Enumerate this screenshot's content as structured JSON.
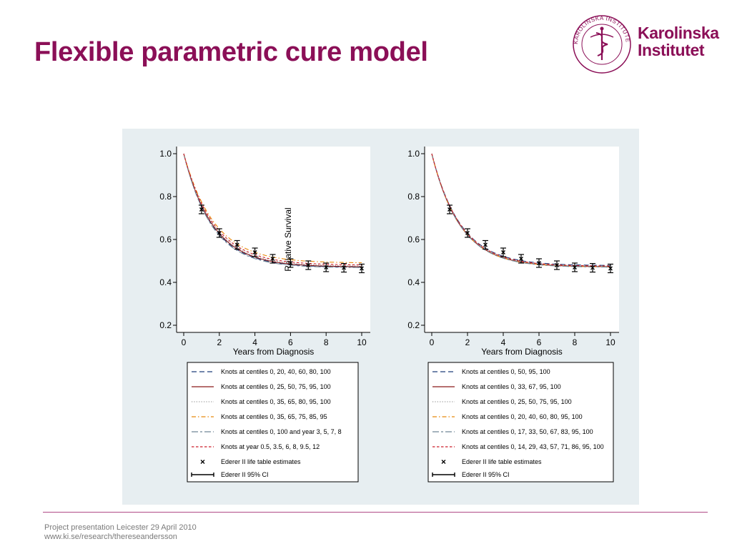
{
  "slide": {
    "title": "Flexible parametric cure model",
    "logo_line1": "Karolinska",
    "logo_line2": "Institutet",
    "seal_text": "KAROLINSKA INSTITUTET · ANNO 1810",
    "footer_line1": "Project presentation Leicester 29 April 2010",
    "footer_line2": "www.ki.se/research/thereseandersson"
  },
  "colors": {
    "brand": "#8b0f57",
    "panel_bg": "#e7eef1",
    "series_navy": "#1f3d7a",
    "series_maroon": "#8b1a1a",
    "series_gray": "#9a9a9a",
    "series_orange": "#e8890c",
    "series_slate": "#6f8797",
    "series_red": "#cc1f2a"
  },
  "chart_data": [
    {
      "type": "line",
      "xlabel": "Years from Diagnosis",
      "ylabel": "Relative Survival",
      "xlim": [
        0,
        10
      ],
      "ylim": [
        0.2,
        1.0
      ],
      "xticks": [
        0,
        2,
        4,
        6,
        8,
        10
      ],
      "yticks": [
        0.2,
        0.4,
        0.6,
        0.8,
        1.0
      ],
      "yticklabels": [
        "0.2",
        "0.4",
        "0.6",
        "0.8",
        "1.0"
      ],
      "grid": false,
      "legend_position": "below",
      "series": [
        {
          "name": "Knots at centiles 0, 20, 40, 60, 80, 100",
          "color": "#1f3d7a",
          "dash": "long-dash",
          "cure": 0.47,
          "rate": 0.62
        },
        {
          "name": "Knots at centiles 0, 25, 50, 75, 95, 100",
          "color": "#8b1a1a",
          "dash": "solid",
          "cure": 0.472,
          "rate": 0.61
        },
        {
          "name": "Knots at centiles 0, 35, 65, 80, 95, 100",
          "color": "#9a9a9a",
          "dash": "dotted",
          "cure": 0.475,
          "rate": 0.6
        },
        {
          "name": "Knots at centiles 0, 35, 65, 75, 85, 95",
          "color": "#e8890c",
          "dash": "dash-dot",
          "cure": 0.49,
          "rate": 0.58
        },
        {
          "name": "Knots at centiles 0, 100 and year 3, 5, 7, 8",
          "color": "#6f8797",
          "dash": "long-short",
          "cure": 0.468,
          "rate": 0.63
        },
        {
          "name": "Knots at year 0.5, 3.5, 6, 8, 9.5, 12",
          "color": "#cc1f2a",
          "dash": "short-dash",
          "cure": 0.48,
          "rate": 0.59
        }
      ],
      "life_table": {
        "marker_label": "Ederer II life table estimates",
        "ci_label": "Ederer II 95% CI",
        "x": [
          1,
          2,
          3,
          4,
          5,
          6,
          7,
          8,
          9,
          10
        ],
        "y": [
          0.74,
          0.63,
          0.575,
          0.54,
          0.51,
          0.49,
          0.48,
          0.47,
          0.468,
          0.465
        ],
        "ci_low": [
          0.72,
          0.61,
          0.555,
          0.52,
          0.49,
          0.47,
          0.46,
          0.45,
          0.448,
          0.445
        ],
        "ci_high": [
          0.76,
          0.65,
          0.595,
          0.56,
          0.53,
          0.51,
          0.5,
          0.49,
          0.488,
          0.485
        ]
      }
    },
    {
      "type": "line",
      "xlabel": "Years from Diagnosis",
      "ylabel": "",
      "xlim": [
        0,
        10
      ],
      "ylim": [
        0.2,
        1.0
      ],
      "xticks": [
        0,
        2,
        4,
        6,
        8,
        10
      ],
      "yticks": [
        0.2,
        0.4,
        0.6,
        0.8,
        1.0
      ],
      "yticklabels": [
        "0.2",
        "0.4",
        "0.6",
        "0.8",
        "1.0"
      ],
      "grid": false,
      "legend_position": "below",
      "series": [
        {
          "name": "Knots at centiles 0, 50, 95, 100",
          "color": "#1f3d7a",
          "dash": "long-dash",
          "cure": 0.478,
          "rate": 0.62
        },
        {
          "name": "Knots at centiles 0, 33, 67, 95, 100",
          "color": "#8b1a1a",
          "dash": "solid",
          "cure": 0.472,
          "rate": 0.63
        },
        {
          "name": "Knots at centiles 0, 25, 50, 75, 95, 100",
          "color": "#9a9a9a",
          "dash": "dotted",
          "cure": 0.474,
          "rate": 0.62
        },
        {
          "name": "Knots at centiles 0, 20, 40, 60, 80, 95, 100",
          "color": "#e8890c",
          "dash": "dash-dot",
          "cure": 0.471,
          "rate": 0.63
        },
        {
          "name": "Knots at centiles 0, 17, 33, 50, 67, 83, 95, 100",
          "color": "#6f8797",
          "dash": "long-short",
          "cure": 0.47,
          "rate": 0.63
        },
        {
          "name": "Knots at centiles 0, 14, 29, 43, 57, 71, 86, 95, 100",
          "color": "#cc1f2a",
          "dash": "short-dash",
          "cure": 0.475,
          "rate": 0.62
        }
      ],
      "life_table": {
        "marker_label": "Ederer II life table estimates",
        "ci_label": "Ederer II 95% CI",
        "x": [
          1,
          2,
          3,
          4,
          5,
          6,
          7,
          8,
          9,
          10
        ],
        "y": [
          0.74,
          0.63,
          0.575,
          0.54,
          0.51,
          0.49,
          0.48,
          0.47,
          0.468,
          0.465
        ],
        "ci_low": [
          0.72,
          0.61,
          0.555,
          0.52,
          0.49,
          0.47,
          0.46,
          0.45,
          0.448,
          0.445
        ],
        "ci_high": [
          0.76,
          0.65,
          0.595,
          0.56,
          0.53,
          0.51,
          0.5,
          0.49,
          0.488,
          0.485
        ]
      }
    }
  ]
}
